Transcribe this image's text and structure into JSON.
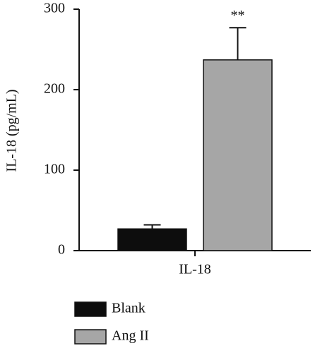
{
  "chart_data": {
    "type": "bar",
    "categories": [
      "IL-18"
    ],
    "y_label": "IL-18 (pg/mL)",
    "series": [
      {
        "name": "Blank",
        "color": "#0d0d0d",
        "values": [
          27
        ],
        "errors": [
          5
        ]
      },
      {
        "name": "Ang II",
        "color": "#a6a6a6",
        "values": [
          237
        ],
        "errors": [
          40
        ]
      }
    ],
    "annotation": "**",
    "ylim": [
      0,
      300
    ],
    "yticks": [
      0,
      100,
      200,
      300
    ],
    "grid": false
  }
}
